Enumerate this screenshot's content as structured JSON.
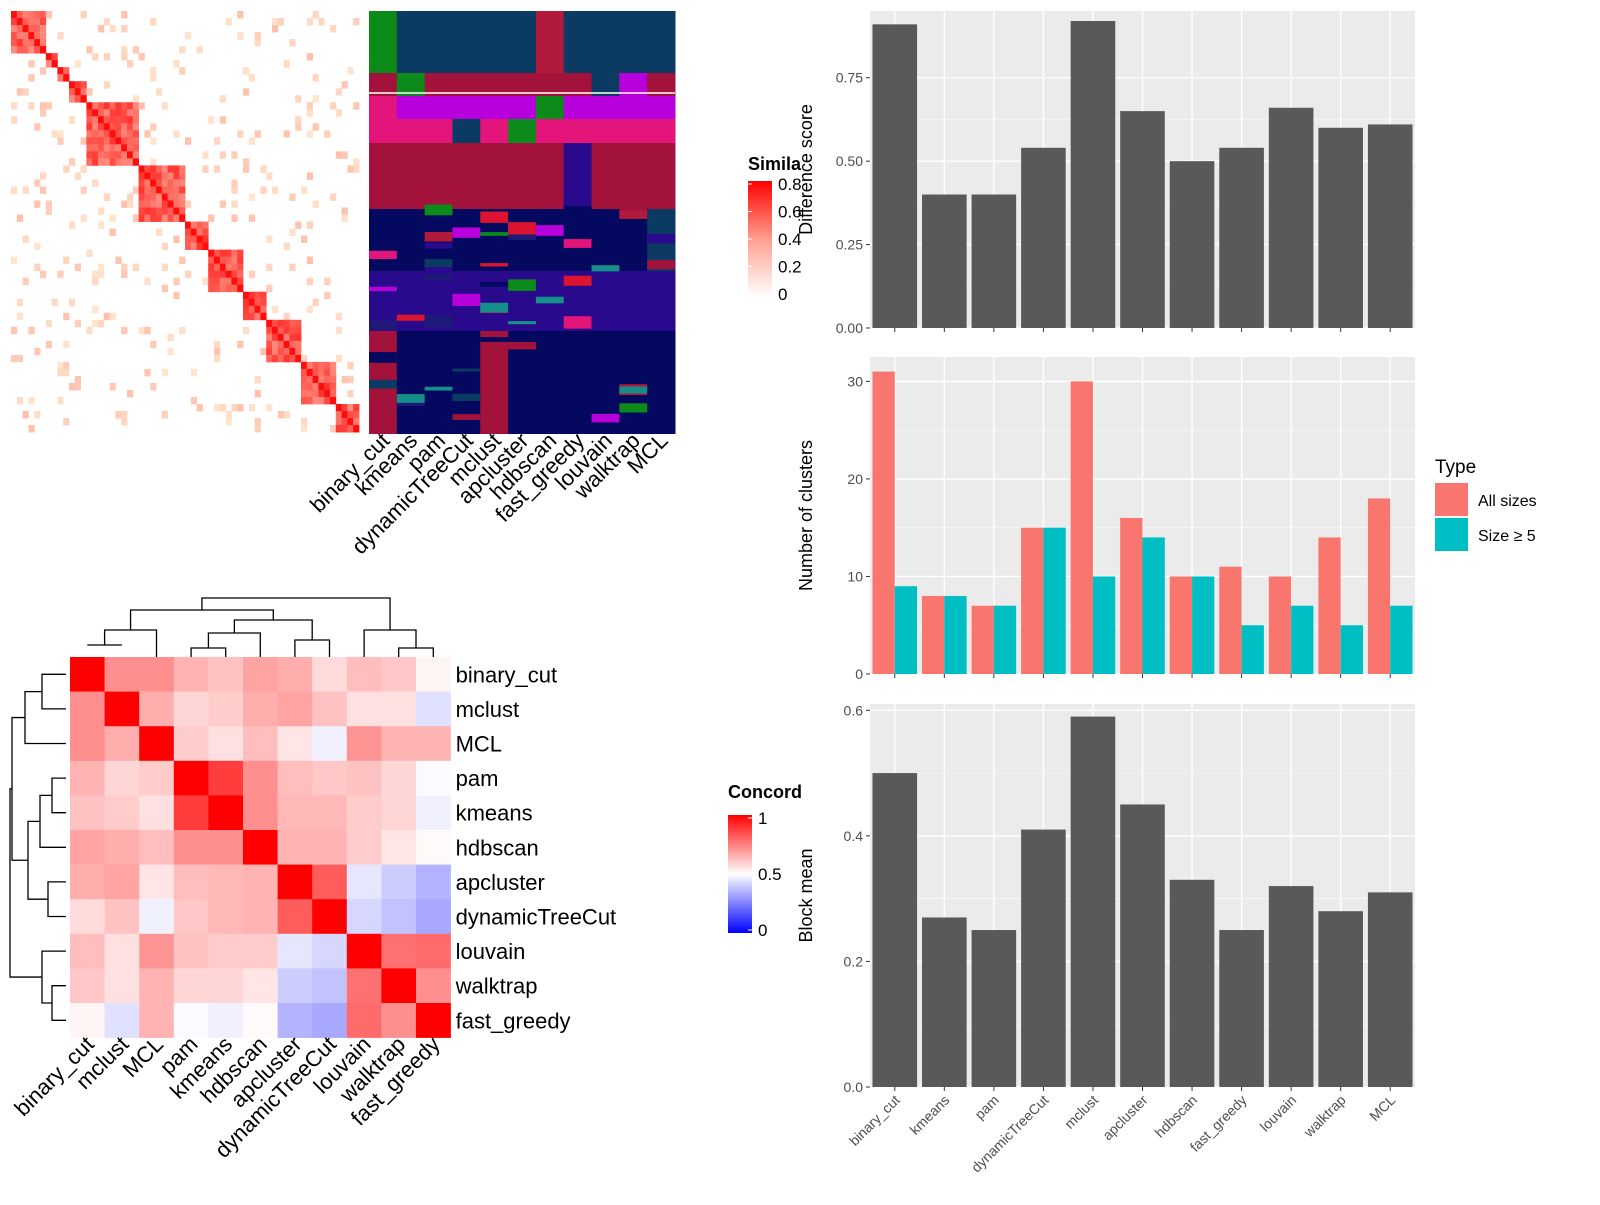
{
  "similarity_panel": {
    "legend_title": "Simila",
    "legend_ticks": [
      "0.8",
      "0.6",
      "0.4",
      "0.2",
      "0"
    ],
    "methods": [
      "binary_cut",
      "kmeans",
      "pam",
      "dynamicTreeCut",
      "mclust",
      "apcluster",
      "hdbscan",
      "fast_greedy",
      "louvain",
      "walktrap",
      "MCL"
    ]
  },
  "concordance_panel": {
    "legend_title": "Concord",
    "legend_ticks": [
      "1",
      "0.5",
      "0"
    ],
    "row_labels": [
      "binary_cut",
      "mclust",
      "MCL",
      "pam",
      "kmeans",
      "hdbscan",
      "apcluster",
      "dynamicTreeCut",
      "louvain",
      "walktrap",
      "fast_greedy"
    ],
    "col_labels": [
      "binary_cut",
      "mclust",
      "MCL",
      "pam",
      "kmeans",
      "hdbscan",
      "apcluster",
      "dynamicTreeCut",
      "louvain",
      "walktrap",
      "fast_greedy"
    ]
  },
  "chart_data": [
    {
      "type": "bar",
      "categories": [
        "binary_cut",
        "kmeans",
        "pam",
        "dynamicTreeCut",
        "mclust",
        "apcluster",
        "hdbscan",
        "fast_greedy",
        "louvain",
        "walktrap",
        "MCL"
      ],
      "values": [
        0.91,
        0.4,
        0.4,
        0.54,
        0.92,
        0.65,
        0.5,
        0.54,
        0.66,
        0.6,
        0.61
      ],
      "ylabel": "Difference score",
      "ylim": [
        0,
        0.95
      ],
      "yticks": [
        "0.00",
        "0.25",
        "0.50",
        "0.75"
      ],
      "color": "#595959"
    },
    {
      "type": "bar",
      "categories": [
        "binary_cut",
        "kmeans",
        "pam",
        "dynamicTreeCut",
        "mclust",
        "apcluster",
        "hdbscan",
        "fast_greedy",
        "louvain",
        "walktrap",
        "MCL"
      ],
      "series": [
        {
          "name": "All sizes",
          "values": [
            31,
            8,
            7,
            15,
            30,
            16,
            10,
            11,
            10,
            14,
            18
          ],
          "color": "#F8766D"
        },
        {
          "name": "Size ≥ 5",
          "values": [
            9,
            8,
            7,
            15,
            10,
            14,
            10,
            5,
            7,
            5,
            7
          ],
          "color": "#00BFC4"
        }
      ],
      "ylabel": "Number of clusters",
      "ylim": [
        0,
        32.5
      ],
      "yticks": [
        "0",
        "10",
        "20",
        "30"
      ],
      "legend_title": "Type",
      "legend_position": "right"
    },
    {
      "type": "bar",
      "categories": [
        "binary_cut",
        "kmeans",
        "pam",
        "dynamicTreeCut",
        "mclust",
        "apcluster",
        "hdbscan",
        "fast_greedy",
        "louvain",
        "walktrap",
        "MCL"
      ],
      "values": [
        0.5,
        0.27,
        0.25,
        0.41,
        0.59,
        0.45,
        0.33,
        0.25,
        0.32,
        0.28,
        0.31
      ],
      "ylabel": "Block mean",
      "ylim": [
        0,
        0.61
      ],
      "yticks": [
        "0.0",
        "0.2",
        "0.4",
        "0.6"
      ],
      "color": "#595959"
    }
  ]
}
